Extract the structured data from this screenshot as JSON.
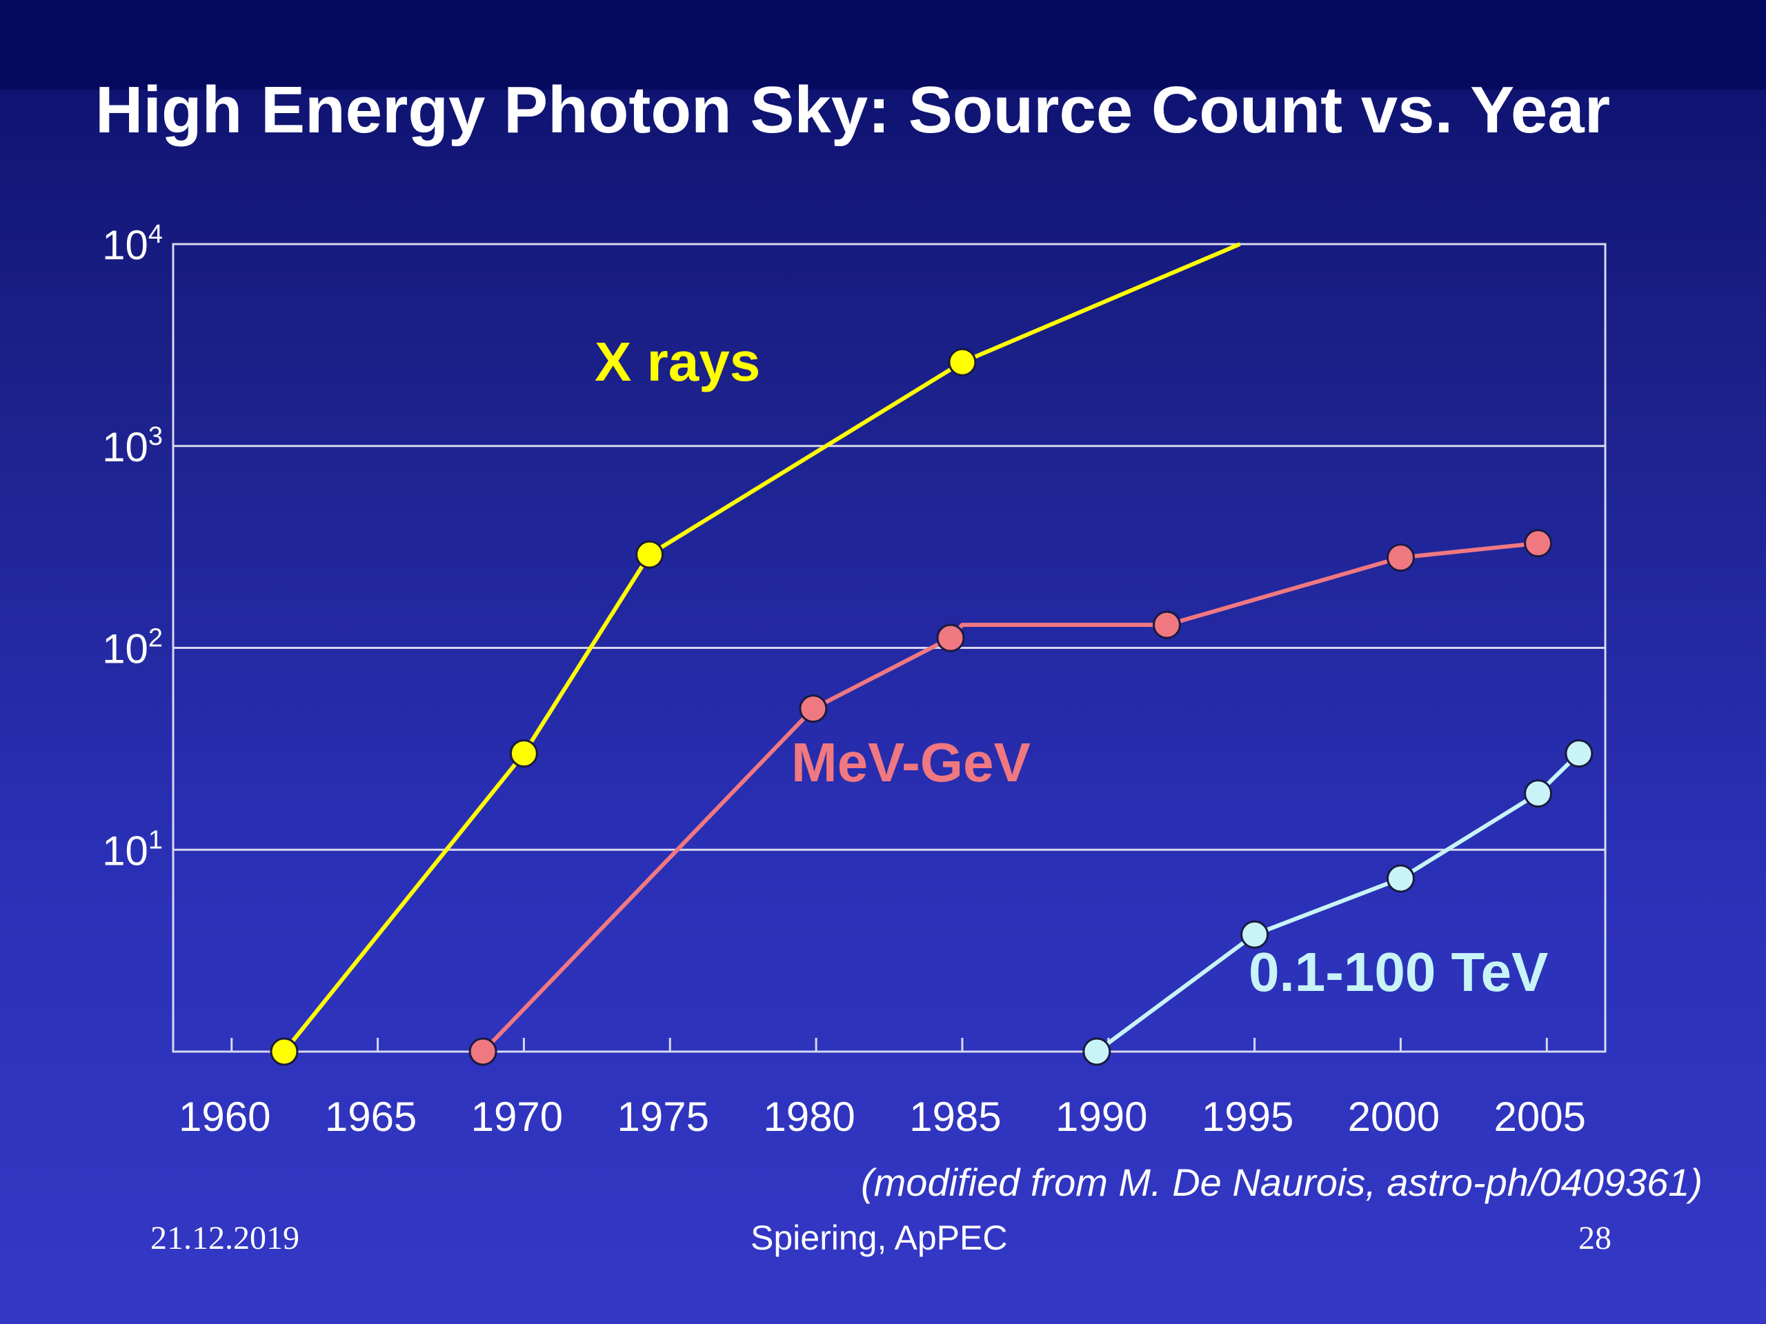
{
  "slide": {
    "title": "High Energy Photon Sky: Source Count vs. Year",
    "source_note": "(modified from M. De Naurois, astro-ph/0409361)",
    "footer": {
      "date": "21.12.2019",
      "center": "Spiering, ApPEC",
      "page": "28"
    }
  },
  "chart_data": {
    "type": "line",
    "title": "High Energy Photon Sky: Source Count vs. Year",
    "xlabel": "",
    "ylabel": "",
    "xlim": [
      1958,
      2007
    ],
    "ylim": [
      1,
      10000
    ],
    "yscale": "log",
    "grid": true,
    "x_ticks": [
      "1960",
      "1965",
      "1970",
      "1975",
      "1980",
      "1985",
      "1990",
      "1995",
      "2000",
      "2005"
    ],
    "y_ticks": [
      {
        "base": "10",
        "exp": "1",
        "value": 10
      },
      {
        "base": "10",
        "exp": "2",
        "value": 100
      },
      {
        "base": "10",
        "exp": "3",
        "value": 1000
      },
      {
        "base": "10",
        "exp": "4",
        "value": 10000
      }
    ],
    "series": [
      {
        "name": "X rays",
        "color": "#ffff00",
        "points": [
          [
            1961.8,
            1
          ],
          [
            1970.0,
            30
          ],
          [
            1974.3,
            290
          ],
          [
            1985.0,
            2600
          ]
        ],
        "extension": [
          [
            1985.0,
            2600
          ],
          [
            1994.5,
            10000
          ]
        ],
        "label_color": "#ffff00"
      },
      {
        "name": "MeV-GeV",
        "color": "#f07880",
        "points": [
          [
            1968.6,
            1
          ],
          [
            1979.9,
            50
          ],
          [
            1984.6,
            112
          ],
          [
            1985.0,
            130
          ],
          [
            1992.0,
            130
          ],
          [
            2000.0,
            280
          ],
          [
            2004.7,
            330
          ]
        ],
        "marker_points": [
          [
            1968.6,
            1
          ],
          [
            1979.9,
            50
          ],
          [
            1984.6,
            112
          ],
          [
            1992.0,
            130
          ],
          [
            2000.0,
            280
          ],
          [
            2004.7,
            330
          ]
        ],
        "label_color": "#f07880"
      },
      {
        "name": "0.1-100 TeV",
        "color": "#c8f4f8",
        "points": [
          [
            1989.6,
            1
          ],
          [
            1995.0,
            3.8
          ],
          [
            2000.0,
            7.2
          ],
          [
            2004.7,
            19
          ],
          [
            2006.1,
            30
          ]
        ],
        "label_color": "#c8f4f8"
      }
    ]
  }
}
